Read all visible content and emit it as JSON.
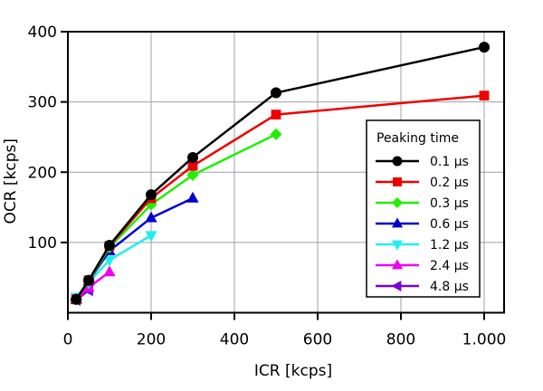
{
  "chart_data": {
    "type": "line",
    "title": "",
    "xlabel": "ICR [kcps]",
    "ylabel": "OCR [kcps]",
    "xlim": [
      0,
      1000
    ],
    "ylim": [
      0,
      400
    ],
    "xticks": [
      0,
      200,
      400,
      600,
      800,
      1000
    ],
    "xtick_labels": [
      "0",
      "200",
      "400",
      "600",
      "800",
      "1.000"
    ],
    "yticks": [
      100,
      200,
      300,
      400
    ],
    "ytick_labels": [
      "100",
      "200",
      "300",
      "400"
    ],
    "grid": true,
    "legend": {
      "title": "Peaking time",
      "placement": "right"
    },
    "series": [
      {
        "name": "0.1 µs",
        "color": "#000000",
        "marker": "circle",
        "x": [
          20,
          50,
          100,
          200,
          300,
          500,
          1000
        ],
        "y": [
          19,
          46,
          96,
          168,
          221,
          313,
          378
        ]
      },
      {
        "name": "0.2 µs",
        "color": "#ee0000",
        "marker": "square",
        "x": [
          20,
          50,
          100,
          200,
          300,
          500,
          1000
        ],
        "y": [
          19,
          46,
          95,
          163,
          209,
          282,
          309
        ]
      },
      {
        "name": "0.3 µs",
        "color": "#22ee00",
        "marker": "diamond",
        "x": [
          20,
          50,
          100,
          200,
          300,
          500
        ],
        "y": [
          19,
          45,
          93,
          154,
          196,
          254
        ]
      },
      {
        "name": "0.6 µs",
        "color": "#0000cc",
        "marker": "triangle-up",
        "x": [
          20,
          50,
          100,
          200,
          300
        ],
        "y": [
          19,
          45,
          88,
          135,
          163
        ]
      },
      {
        "name": "1.2 µs",
        "color": "#22eeee",
        "marker": "triangle-down",
        "x": [
          20,
          50,
          100,
          200
        ],
        "y": [
          22,
          43,
          75,
          110
        ]
      },
      {
        "name": "2.4 µs",
        "color": "#ee00ee",
        "marker": "triangle-up",
        "x": [
          20,
          50,
          100
        ],
        "y": [
          19,
          36,
          58
        ]
      },
      {
        "name": "4.8 µs",
        "color": "#7700dd",
        "marker": "triangle-left",
        "x": [
          20,
          50
        ],
        "y": [
          18,
          32
        ]
      }
    ]
  }
}
